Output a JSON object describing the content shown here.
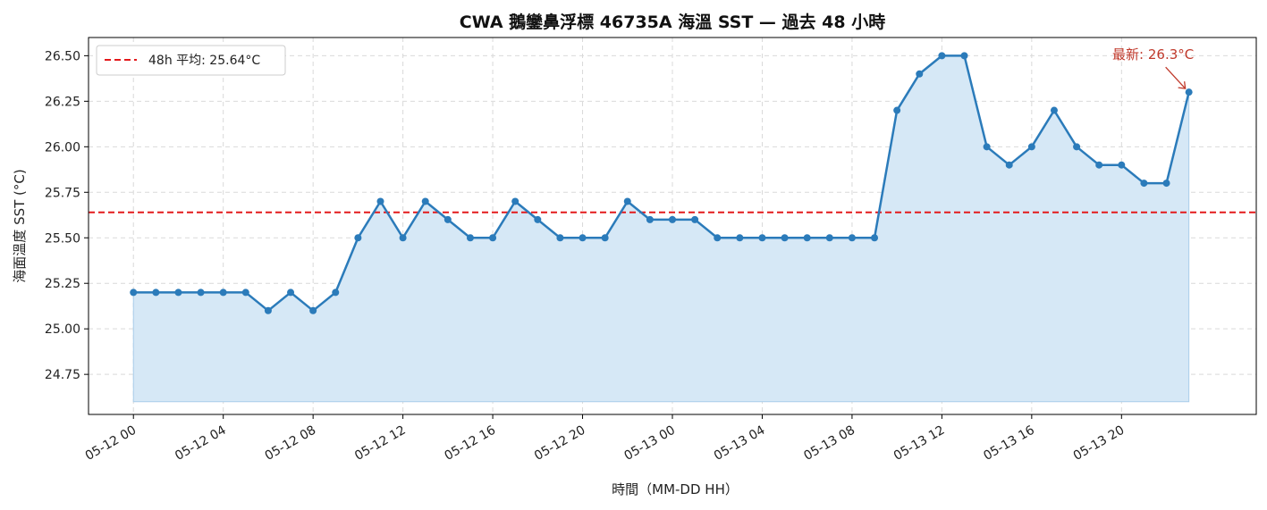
{
  "chart_data": {
    "type": "line",
    "title": "CWA 鵝鑾鼻浮標 46735A 海溫 SST — 過去 48 小時",
    "xlabel": "時間（MM-DD HH）",
    "ylabel": "海面溫度 SST (°C)",
    "ylim": [
      24.53,
      26.6
    ],
    "xlim": [
      "05-11 22",
      "05-14 02"
    ],
    "y_ticks": [
      "24.75",
      "25.00",
      "25.25",
      "25.50",
      "25.75",
      "26.00",
      "26.25",
      "26.50"
    ],
    "x_ticks": [
      "05-12 00",
      "05-12 04",
      "05-12 08",
      "05-12 12",
      "05-12 16",
      "05-12 20",
      "05-13 00",
      "05-13 04",
      "05-13 08",
      "05-13 12",
      "05-13 16",
      "05-13 20"
    ],
    "grid": true,
    "area_fill_baseline": 24.6,
    "colors": {
      "line": "#2b7bba",
      "fill": "#d6e8f6",
      "mean": "#e31a1c",
      "annotation": "#c0392b"
    },
    "series": [
      {
        "x": [
          "05-12 00",
          "05-12 01",
          "05-12 02",
          "05-12 03",
          "05-12 04",
          "05-12 05",
          "05-12 06",
          "05-12 07",
          "05-12 08",
          "05-12 09",
          "05-12 10",
          "05-12 11",
          "05-12 12",
          "05-12 13",
          "05-12 14",
          "05-12 15",
          "05-12 16",
          "05-12 17",
          "05-12 18",
          "05-12 19",
          "05-12 20",
          "05-12 21",
          "05-12 22",
          "05-12 23",
          "05-13 00",
          "05-13 01",
          "05-13 02",
          "05-13 03",
          "05-13 04",
          "05-13 05",
          "05-13 06",
          "05-13 07",
          "05-13 08",
          "05-13 09",
          "05-13 10",
          "05-13 11",
          "05-13 12",
          "05-13 13",
          "05-13 14",
          "05-13 15",
          "05-13 16",
          "05-13 17",
          "05-13 18",
          "05-13 19",
          "05-13 20",
          "05-13 21",
          "05-13 22",
          "05-13 23"
        ],
        "values": [
          25.2,
          25.2,
          25.2,
          25.2,
          25.2,
          25.2,
          25.1,
          25.2,
          25.1,
          25.2,
          25.5,
          25.7,
          25.5,
          25.7,
          25.6,
          25.5,
          25.5,
          25.7,
          25.6,
          25.5,
          25.5,
          25.5,
          25.7,
          25.6,
          25.6,
          25.6,
          25.5,
          25.5,
          25.5,
          25.5,
          25.5,
          25.5,
          25.5,
          25.5,
          26.2,
          26.4,
          26.5,
          26.5,
          26.0,
          25.9,
          26.0,
          26.2,
          26.0,
          25.9,
          25.9,
          25.8,
          25.8,
          26.3
        ]
      }
    ],
    "mean_line": {
      "value": 25.64,
      "label": "48h 平均: 25.64°C"
    },
    "legend": {
      "position": "top-left"
    },
    "annotation": {
      "text": "最新: 26.3°C"
    }
  }
}
